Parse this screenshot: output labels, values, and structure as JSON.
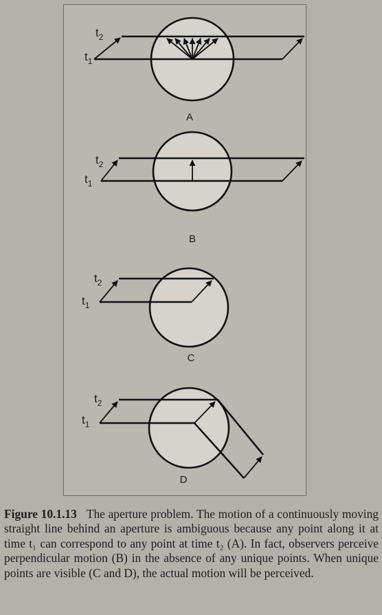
{
  "figure": {
    "panels": [
      {
        "letter": "A",
        "t2": "t",
        "t2_sub": "2",
        "t1": "t",
        "t1_sub": "1"
      },
      {
        "letter": "B",
        "t2": "t",
        "t2_sub": "2",
        "t1": "t",
        "t1_sub": "1"
      },
      {
        "letter": "C",
        "t2": "t",
        "t2_sub": "2",
        "t1": "t",
        "t1_sub": "1"
      },
      {
        "letter": "D",
        "t2": "t",
        "t2_sub": "2",
        "t1": "t",
        "t1_sub": "1"
      }
    ]
  },
  "caption": {
    "label": "Figure 10.1.13",
    "text": "The aperture problem. The motion of a continuously moving straight line behind an aperture is ambiguous because any point along it at time t₁ can correspond to any point at time t₂ (A). In fact, observers perceive perpendicular motion (B) in the absence of any unique points. When unique points are visible (C and D), the actual motion will be perceived."
  }
}
